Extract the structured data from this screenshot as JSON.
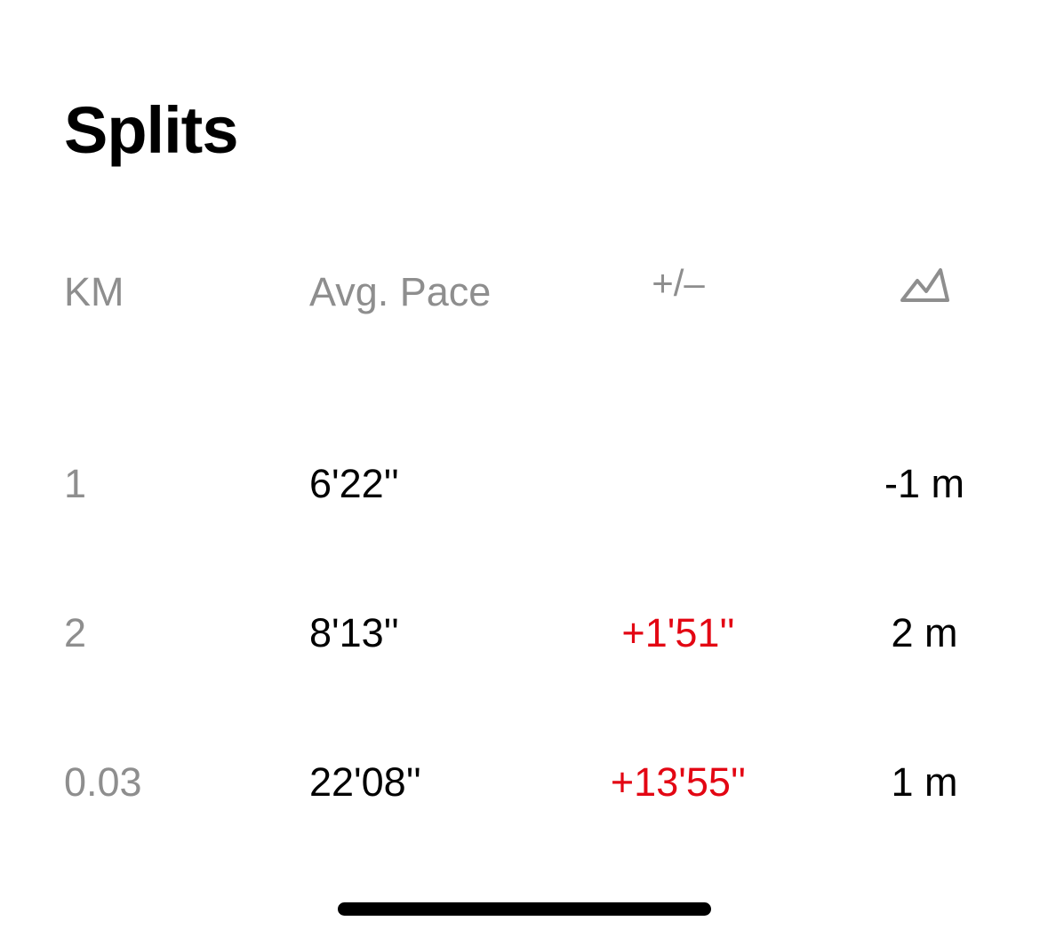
{
  "title": "Splits",
  "header": {
    "km": "KM",
    "avg_pace": "Avg. Pace",
    "diff": "+/–",
    "elevation_icon": "mountain-elevation-icon"
  },
  "rows": [
    {
      "km": "1",
      "pace": "6'22''",
      "diff": "",
      "elevation": "-1 m"
    },
    {
      "km": "2",
      "pace": "8'13''",
      "diff": "+1'51''",
      "elevation": "2 m"
    },
    {
      "km": "0.03",
      "pace": "22'08''",
      "diff": "+13'55''",
      "elevation": "1 m"
    }
  ],
  "colors": {
    "muted": "#8e8e8e",
    "slower": "#e30613",
    "text": "#000000"
  }
}
